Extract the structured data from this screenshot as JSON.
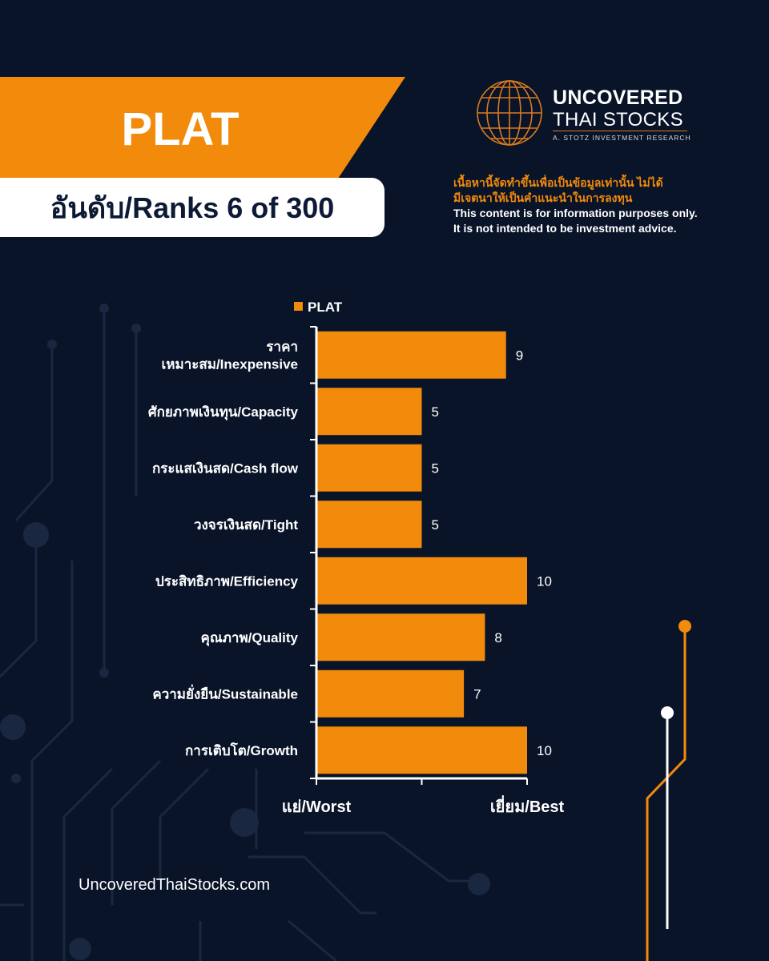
{
  "header": {
    "ticker": "PLAT",
    "rank": "อันดับ/Ranks 6 of 300"
  },
  "brand": {
    "line1": "UNCOVERED",
    "line2": "THAI STOCKS",
    "line3": "A. STOTZ INVESTMENT RESEARCH",
    "accent": "#f28a0b"
  },
  "disclaimer": {
    "thai_line1": "เนื้อหานี้จัดทำขึ้นเพื่อเป็นข้อมูลเท่านั้น ไม่ได้",
    "thai_line2": "มีเจตนาให้เป็นคำแนะนำในการลงทุน",
    "en_line1": "This content is for information purposes only.",
    "en_line2": "It is not intended to be investment advice."
  },
  "chart_data": {
    "type": "bar",
    "orientation": "horizontal",
    "legend": "PLAT",
    "legend_position": "top",
    "categories": [
      [
        "ราคา",
        "เหมาะสม/Inexpensive"
      ],
      [
        "ศักยภาพเงินทุน/Capacity"
      ],
      [
        "กระแสเงินสด/Cash flow"
      ],
      [
        "วงจรเงินสด/Tight"
      ],
      [
        "ประสิทธิภาพ/Efficiency"
      ],
      [
        "คุณภาพ/Quality"
      ],
      [
        "ความยั่งยืน/Sustainable"
      ],
      [
        "การเติบโต/Growth"
      ]
    ],
    "series": [
      {
        "name": "PLAT",
        "values": [
          9,
          5,
          5,
          5,
          10,
          8,
          7,
          10
        ],
        "color": "#f28a0b"
      }
    ],
    "xlim": [
      0,
      10
    ],
    "xtick_left": "แย่/Worst",
    "xtick_right": "เยี่ยม/Best",
    "grid": false
  },
  "footer": {
    "url": "UncoveredThaiStocks.com"
  }
}
